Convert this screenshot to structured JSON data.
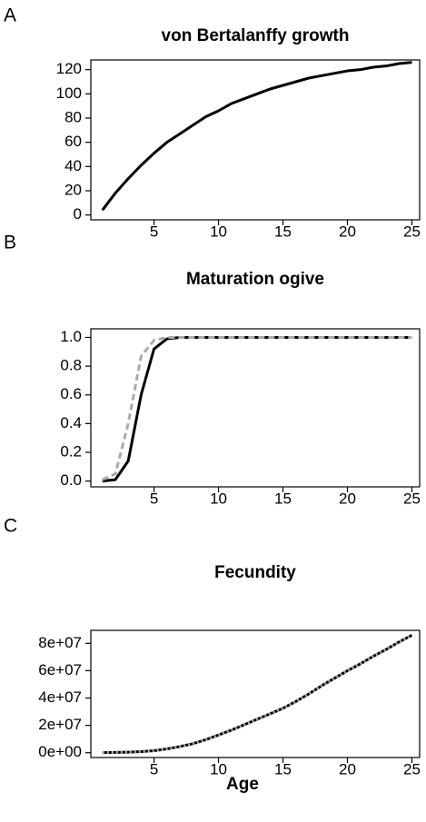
{
  "chart_data": [
    {
      "type": "line",
      "panel_label": "A",
      "title": "von Bertalanffy growth",
      "x": [
        1,
        2,
        3,
        4,
        5,
        6,
        7,
        8,
        9,
        10,
        11,
        12,
        13,
        14,
        15,
        16,
        17,
        18,
        19,
        20,
        21,
        22,
        23,
        24,
        25
      ],
      "series": [
        {
          "color": "#000000",
          "linestyle": "solid",
          "values": [
            4,
            18,
            30,
            41,
            51,
            60,
            67,
            74,
            81,
            86,
            92,
            96,
            100,
            104,
            107,
            110,
            113,
            115,
            117,
            119,
            120,
            122,
            123,
            125,
            126
          ]
        }
      ],
      "xlim": [
        0.1,
        25.6
      ],
      "xticks": [
        5,
        10,
        15,
        20,
        25
      ],
      "ylim": [
        -4,
        128
      ],
      "yticks": [
        0,
        20,
        40,
        60,
        80,
        100,
        120
      ]
    },
    {
      "type": "line",
      "panel_label": "B",
      "title": "Maturation ogive",
      "x": [
        1,
        2,
        3,
        4,
        5,
        6,
        7,
        8,
        9,
        10,
        11,
        12,
        13,
        14,
        15,
        16,
        17,
        18,
        19,
        20,
        21,
        22,
        23,
        24,
        25
      ],
      "series": [
        {
          "color": "#000000",
          "linestyle": "solid",
          "values": [
            0,
            0.01,
            0.14,
            0.6,
            0.92,
            0.99,
            1,
            1,
            1,
            1,
            1,
            1,
            1,
            1,
            1,
            1,
            1,
            1,
            1,
            1,
            1,
            1,
            1,
            1,
            1
          ]
        },
        {
          "color": "#aaaaaa",
          "linestyle": "dashed",
          "values": [
            0.01,
            0.05,
            0.4,
            0.87,
            0.98,
            1,
            1,
            1,
            1,
            1,
            1,
            1,
            1,
            1,
            1,
            1,
            1,
            1,
            1,
            1,
            1,
            1,
            1,
            1,
            1
          ]
        }
      ],
      "xlim": [
        0.1,
        25.6
      ],
      "xticks": [
        5,
        10,
        15,
        20,
        25
      ],
      "ylim": [
        -0.04,
        1.06
      ],
      "yticks": [
        {
          "value": 0,
          "label": "0.0"
        },
        0.2,
        0.4,
        0.6,
        0.8,
        {
          "value": 1,
          "label": "1.0"
        }
      ]
    },
    {
      "type": "line",
      "panel_label": "C",
      "title": "Fecundity",
      "x_label": "Age",
      "x": [
        1,
        2,
        3,
        4,
        5,
        6,
        7,
        8,
        9,
        10,
        11,
        12,
        13,
        14,
        15,
        16,
        17,
        18,
        19,
        20,
        21,
        22,
        23,
        24,
        25
      ],
      "series": [
        {
          "color": "#000000",
          "linestyle": "solid",
          "values": [
            100000,
            200000,
            400000,
            800000,
            1500000,
            2800000,
            4500000,
            6600000,
            9500000,
            13000000,
            16500000,
            20500000,
            24500000,
            28500000,
            32500000,
            37500000,
            43000000,
            49000000,
            54500000,
            60000000,
            65000000,
            70500000,
            75500000,
            81000000,
            86000000
          ]
        },
        {
          "color": "#aaaaaa",
          "linestyle": "dotted",
          "values": [
            100000,
            200000,
            400000,
            800000,
            1500000,
            2800000,
            4500000,
            6600000,
            9500000,
            13000000,
            16500000,
            20500000,
            24500000,
            28500000,
            32500000,
            37500000,
            43000000,
            49000000,
            54500000,
            60000000,
            65000000,
            70500000,
            75500000,
            81000000,
            86000000
          ]
        }
      ],
      "xlim": [
        0.1,
        25.6
      ],
      "xticks": [
        5,
        10,
        15,
        20,
        25
      ],
      "ylim": [
        -3500000,
        89500000
      ],
      "yticks": [
        {
          "value": 0,
          "label": "0e+00"
        },
        {
          "value": 20000000,
          "label": "2e+07"
        },
        {
          "value": 40000000,
          "label": "4e+07"
        },
        {
          "value": 60000000,
          "label": "6e+07"
        },
        {
          "value": 80000000,
          "label": "8e+07"
        }
      ]
    }
  ]
}
